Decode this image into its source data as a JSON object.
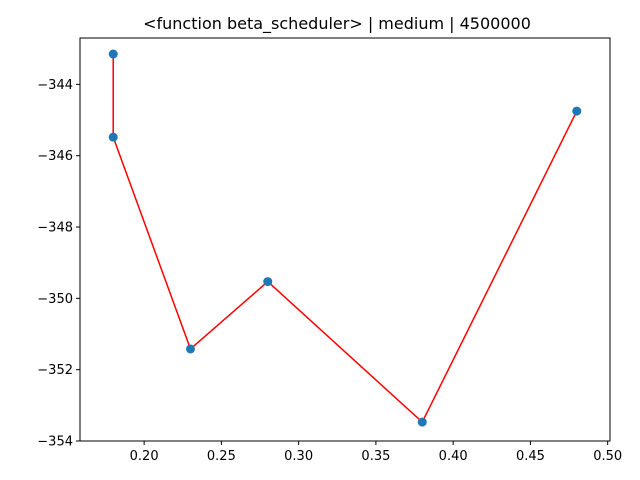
{
  "chart_data": {
    "type": "line",
    "title": "<function beta_scheduler> | medium | 4500000",
    "xlabel": "",
    "ylabel": "",
    "xlim": [
      0.1585,
      0.5015
    ],
    "ylim": [
      -354.0,
      -342.7
    ],
    "x_ticks": [
      0.2,
      0.25,
      0.3,
      0.35,
      0.4,
      0.45,
      0.5
    ],
    "x_tick_labels": [
      "0.20",
      "0.25",
      "0.30",
      "0.35",
      "0.40",
      "0.45",
      "0.50"
    ],
    "y_ticks": [
      -354,
      -352,
      -350,
      -348,
      -346,
      -344
    ],
    "y_tick_labels": [
      "−354",
      "−352",
      "−350",
      "−348",
      "−346",
      "−344"
    ],
    "grid": false,
    "line_color": "#ff0000",
    "marker_color": "#1f77b4",
    "points": [
      {
        "x": 0.18,
        "y": -343.15
      },
      {
        "x": 0.18,
        "y": -345.48
      },
      {
        "x": 0.23,
        "y": -351.42
      },
      {
        "x": 0.28,
        "y": -349.53
      },
      {
        "x": 0.38,
        "y": -353.47
      },
      {
        "x": 0.48,
        "y": -344.75
      }
    ]
  }
}
